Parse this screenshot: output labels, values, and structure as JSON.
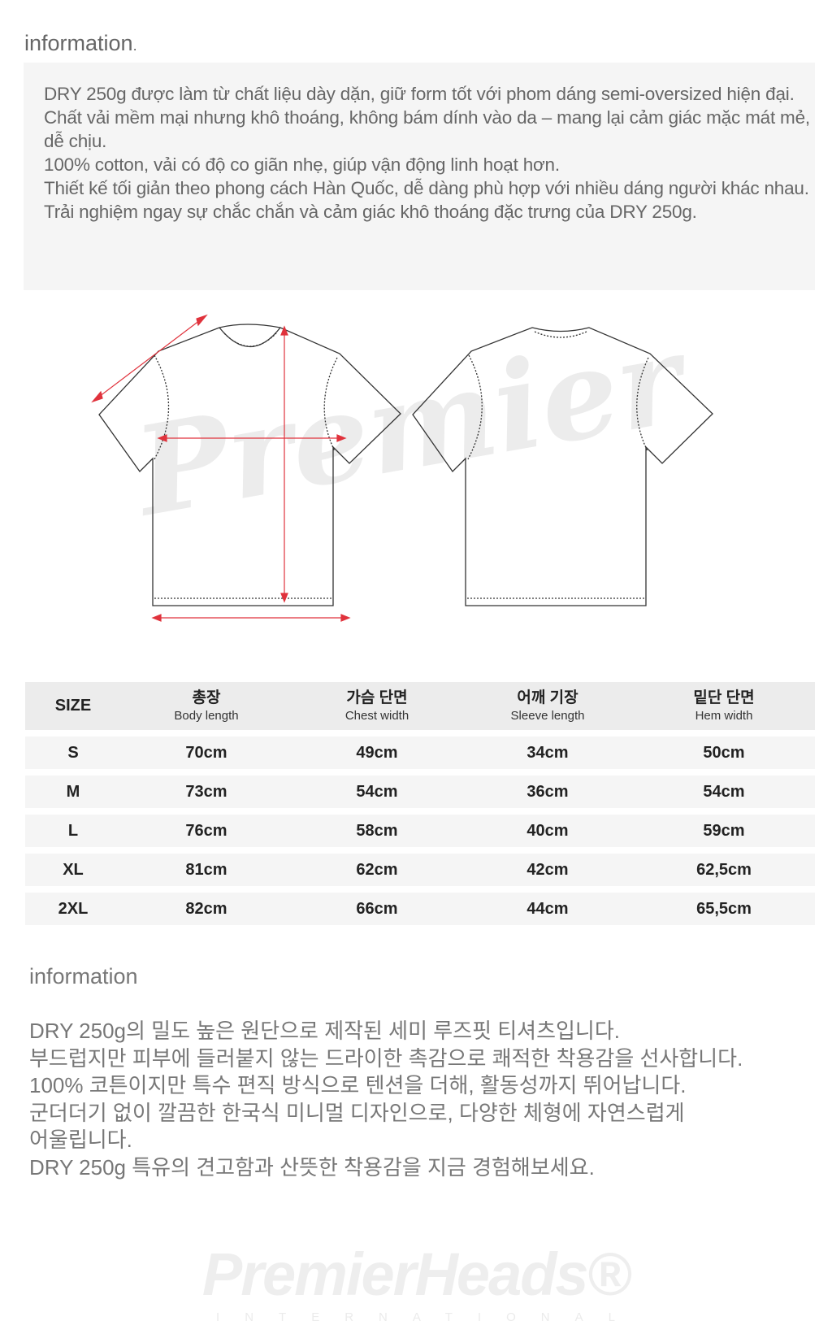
{
  "section1": {
    "title": "information",
    "title_dot": ".",
    "lines": [
      "DRY 250g được làm từ chất liệu dày dặn, giữ form tốt với phom dáng semi-oversized hiện đại.",
      "Chất vải mềm mại nhưng khô thoáng, không bám dính vào da – mang lại cảm giác mặc mát mẻ, dễ chịu.",
      "100% cotton, vải có độ co giãn nhẹ, giúp vận động linh hoạt hơn.",
      "Thiết kế tối giản theo phong cách Hàn Quốc, dễ dàng phù hợp với nhiều dáng người khác nhau.",
      "Trải nghiệm ngay sự chắc chắn và cảm giác khô thoáng đặc trưng của DRY 250g."
    ]
  },
  "diagram": {
    "watermark": "Premier",
    "arrow_color": "#e0323c"
  },
  "size_table": {
    "headers": [
      {
        "ko": "SIZE",
        "en": ""
      },
      {
        "ko": "총장",
        "en": "Body length"
      },
      {
        "ko": "가슴 단면",
        "en": "Chest width"
      },
      {
        "ko": "어깨 기장",
        "en": "Sleeve length"
      },
      {
        "ko": "밑단 단면",
        "en": "Hem width"
      }
    ],
    "rows": [
      [
        "S",
        "70cm",
        "49cm",
        "34cm",
        "50cm"
      ],
      [
        "M",
        "73cm",
        "54cm",
        "36cm",
        "54cm"
      ],
      [
        "L",
        "76cm",
        "58cm",
        "40cm",
        "59cm"
      ],
      [
        "XL",
        "81cm",
        "62cm",
        "42cm",
        "62,5cm"
      ],
      [
        "2XL",
        "82cm",
        "66cm",
        "44cm",
        "65,5cm"
      ]
    ]
  },
  "section2": {
    "title": "information",
    "lines": [
      "DRY 250g의 밀도 높은 원단으로 제작된 세미 루즈핏 티셔츠입니다.",
      "부드럽지만 피부에 들러붙지 않는 드라이한 촉감으로 쾌적한 착용감을 선사합니다.",
      "100% 코튼이지만 특수 편직 방식으로 텐션을 더해, 활동성까지 뛰어납니다.",
      "군더더기 없이 깔끔한 한국식 미니멀 디자인으로, 다양한 체형에 자연스럽게",
      "어울립니다.",
      "DRY 250g 특유의 견고함과 산뜻한 착용감을 지금 경험해보세요."
    ]
  },
  "footer_logo": {
    "name": "PremierHeads®",
    "sub": "INTERNATIONAL"
  }
}
